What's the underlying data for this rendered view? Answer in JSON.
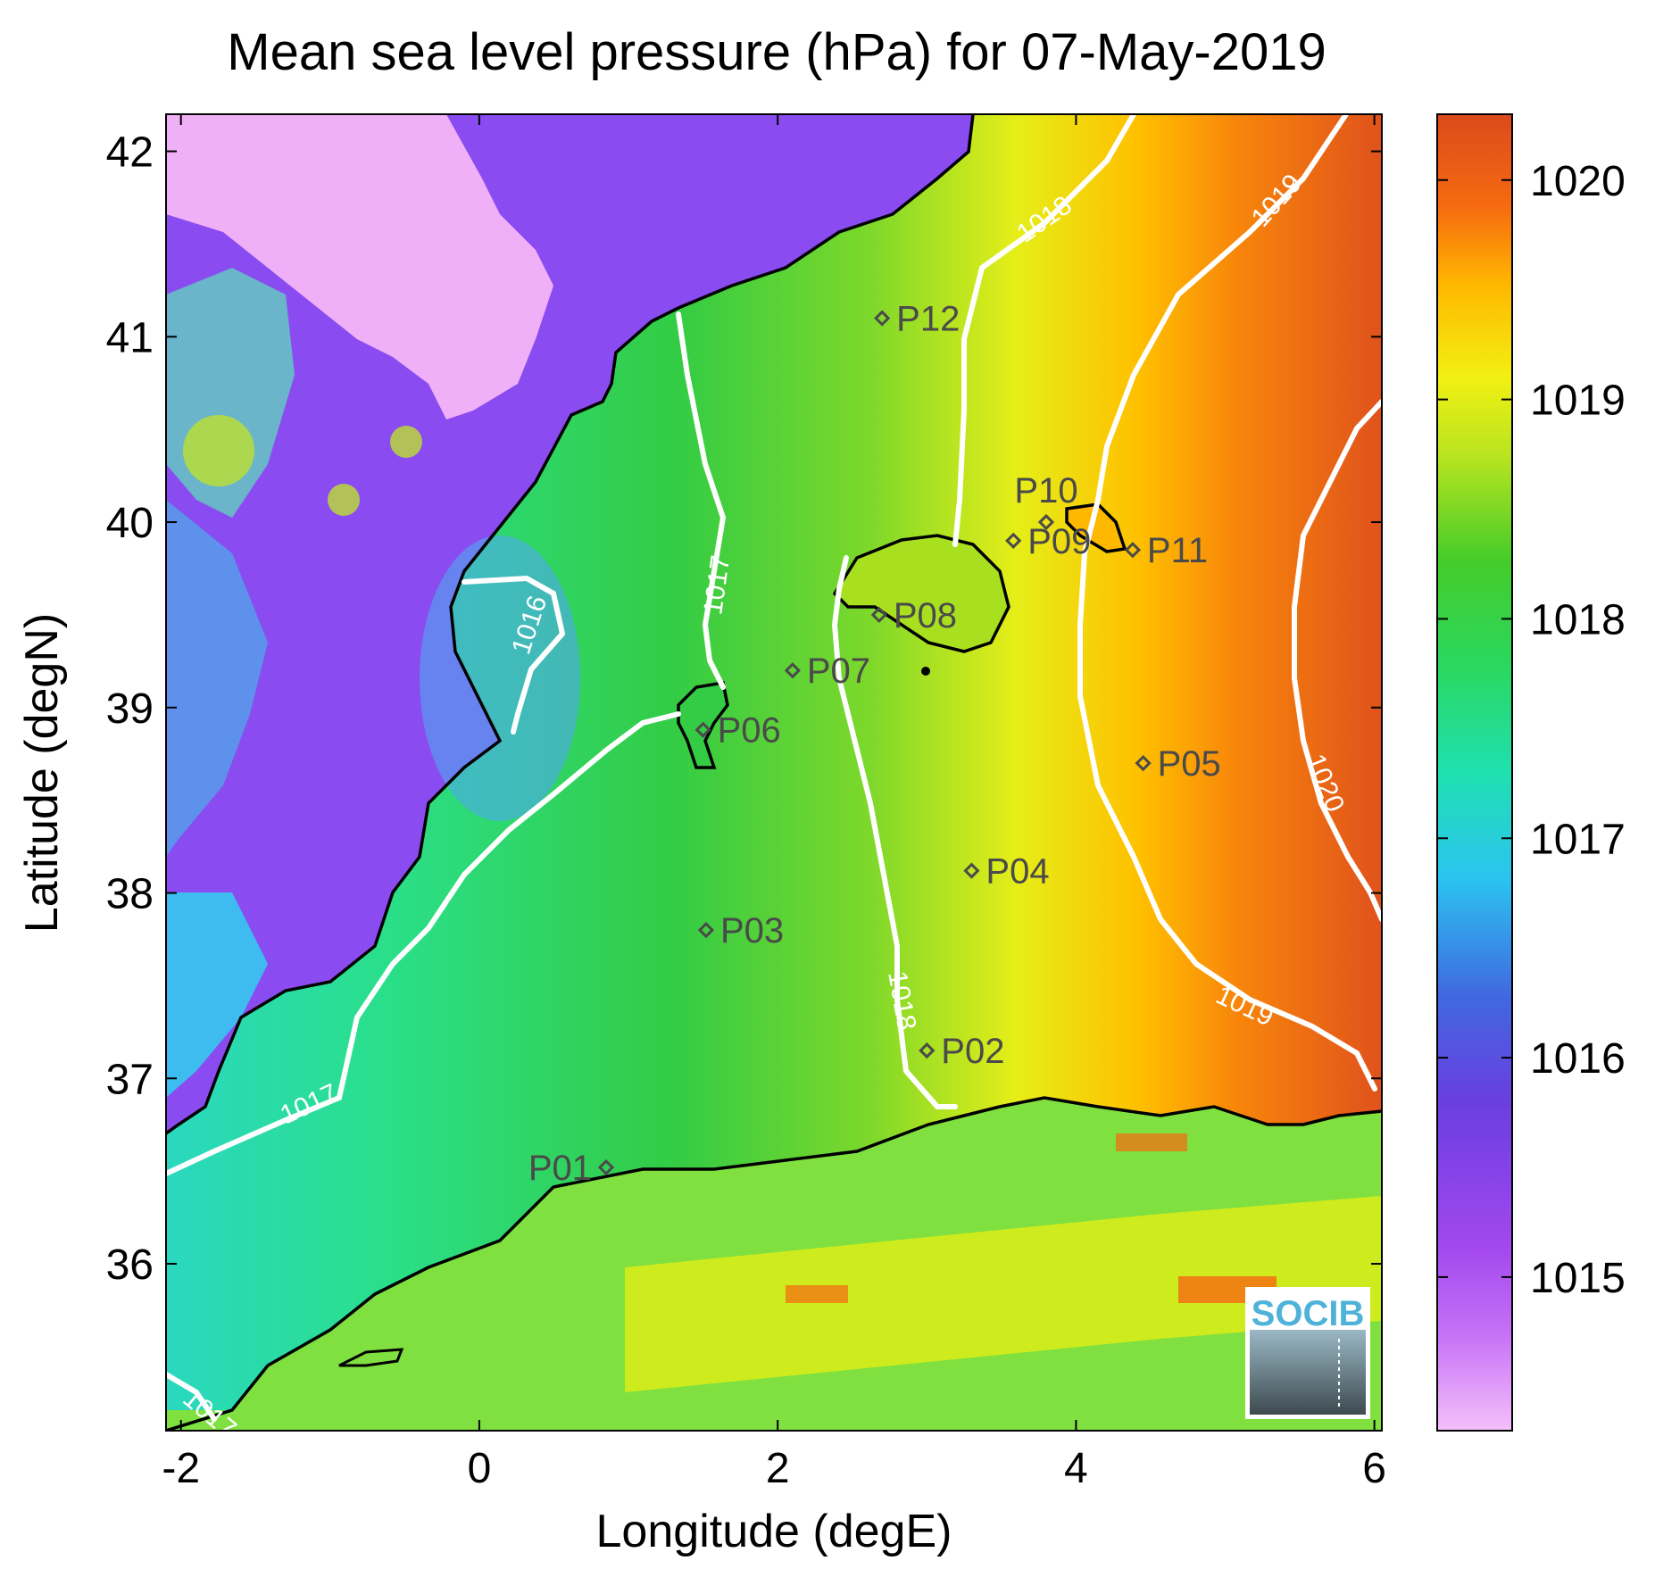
{
  "title": "Mean sea level pressure (hPa) for 07-May-2019",
  "xlabel": "Longitude (degE)",
  "ylabel": "Latitude (degN)",
  "x_ticks": [
    "-2",
    "0",
    "2",
    "4",
    "6"
  ],
  "y_ticks": [
    "36",
    "37",
    "38",
    "39",
    "40",
    "41",
    "42"
  ],
  "colorbar": {
    "ticks": [
      "1015",
      "1016",
      "1017",
      "1018",
      "1019",
      "1020"
    ],
    "range": [
      1014.3,
      1020.3
    ],
    "colormap": [
      "#f2b8f8",
      "#a64af0",
      "#5b3ad8",
      "#3b6fe0",
      "#2ad8ef",
      "#1fe08c",
      "#33cc33",
      "#a8e020",
      "#f0f010",
      "#ffb000",
      "#f56a10",
      "#dc4a1c"
    ]
  },
  "contour_labels": [
    "1016",
    "1017",
    "1017",
    "1017",
    "1018",
    "1018",
    "1019",
    "1019",
    "1020"
  ],
  "stations": [
    {
      "name": "P01",
      "lon": 0.85,
      "lat": 36.52
    },
    {
      "name": "P02",
      "lon": 3.0,
      "lat": 37.15
    },
    {
      "name": "P03",
      "lon": 1.52,
      "lat": 37.8
    },
    {
      "name": "P04",
      "lon": 3.3,
      "lat": 38.12
    },
    {
      "name": "P05",
      "lon": 4.45,
      "lat": 38.7
    },
    {
      "name": "P06",
      "lon": 1.5,
      "lat": 38.88
    },
    {
      "name": "P07",
      "lon": 2.1,
      "lat": 39.2
    },
    {
      "name": "P08",
      "lon": 2.68,
      "lat": 39.5
    },
    {
      "name": "P09",
      "lon": 3.58,
      "lat": 39.9
    },
    {
      "name": "P10",
      "lon": 3.8,
      "lat": 40.0
    },
    {
      "name": "P11",
      "lon": 4.38,
      "lat": 39.85
    },
    {
      "name": "P12",
      "lon": 2.7,
      "lat": 41.1
    }
  ],
  "logo": {
    "text": "SOCIB"
  }
}
